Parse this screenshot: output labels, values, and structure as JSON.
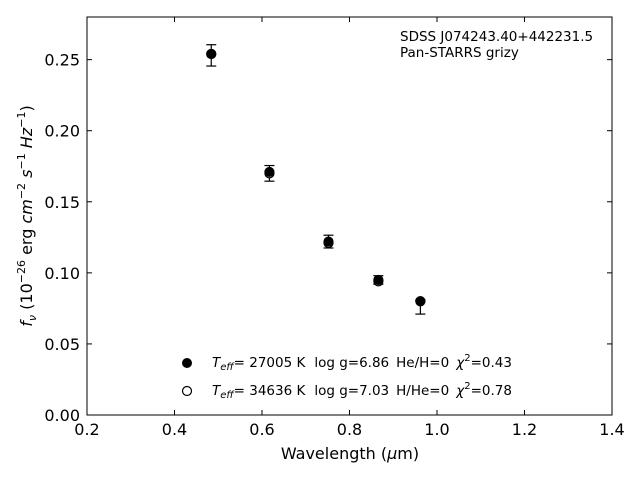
{
  "chart_data": {
    "type": "scatter",
    "annotation_lines": [
      "SDSS J074243.40+442231.5",
      "Pan-STARRS grizy"
    ],
    "xlabel": "Wavelength (μm)",
    "ylabel": "f_ν (10^-26 erg cm^-2 s^-1 Hz^-1)",
    "xlim": [
      0.2,
      1.4
    ],
    "ylim": [
      0.0,
      0.28
    ],
    "xticks": [
      0.2,
      0.4,
      0.6,
      0.8,
      1.0,
      1.2,
      1.4
    ],
    "yticks": [
      0.0,
      0.05,
      0.1,
      0.15,
      0.2,
      0.25
    ],
    "xtick_labels": [
      "0.2",
      "0.4",
      "0.6",
      "0.8",
      "1.0",
      "1.2",
      "1.4"
    ],
    "ytick_labels": [
      "0.00",
      "0.05",
      "0.10",
      "0.15",
      "0.20",
      "0.25"
    ],
    "observed": {
      "x": [
        0.484,
        0.617,
        0.752,
        0.866,
        0.962
      ],
      "y": [
        0.253,
        0.17,
        0.122,
        0.095,
        0.076
      ],
      "err": [
        0.0075,
        0.0055,
        0.0045,
        0.003,
        0.005
      ]
    },
    "series": [
      {
        "name": "Teff= 27005 K  log g=6.86  He/H=0  χ²=0.43",
        "marker": "filled",
        "x": [
          0.484,
          0.617,
          0.752,
          0.866,
          0.962
        ],
        "y": [
          0.254,
          0.171,
          0.122,
          0.095,
          0.08
        ]
      },
      {
        "name": "Teff= 34636 K  log g=7.03  H/He=0  χ²=0.78",
        "marker": "open",
        "x": [
          0.484,
          0.617,
          0.752,
          0.866,
          0.962
        ],
        "y": [
          0.254,
          0.17,
          0.121,
          0.094,
          0.08
        ]
      }
    ],
    "legend": {
      "position": "lower-left",
      "entries": [
        {
          "teff": "= 27005 K",
          "logg": "log g=6.86",
          "comp": "He/H=0",
          "chi_sup": "2",
          "chi": "=0.43"
        },
        {
          "teff": "= 34636 K",
          "logg": "log g=7.03",
          "comp": "H/He=0",
          "chi_sup": "2",
          "chi": "=0.78"
        }
      ]
    },
    "grid": false,
    "tick_direction": "in"
  }
}
